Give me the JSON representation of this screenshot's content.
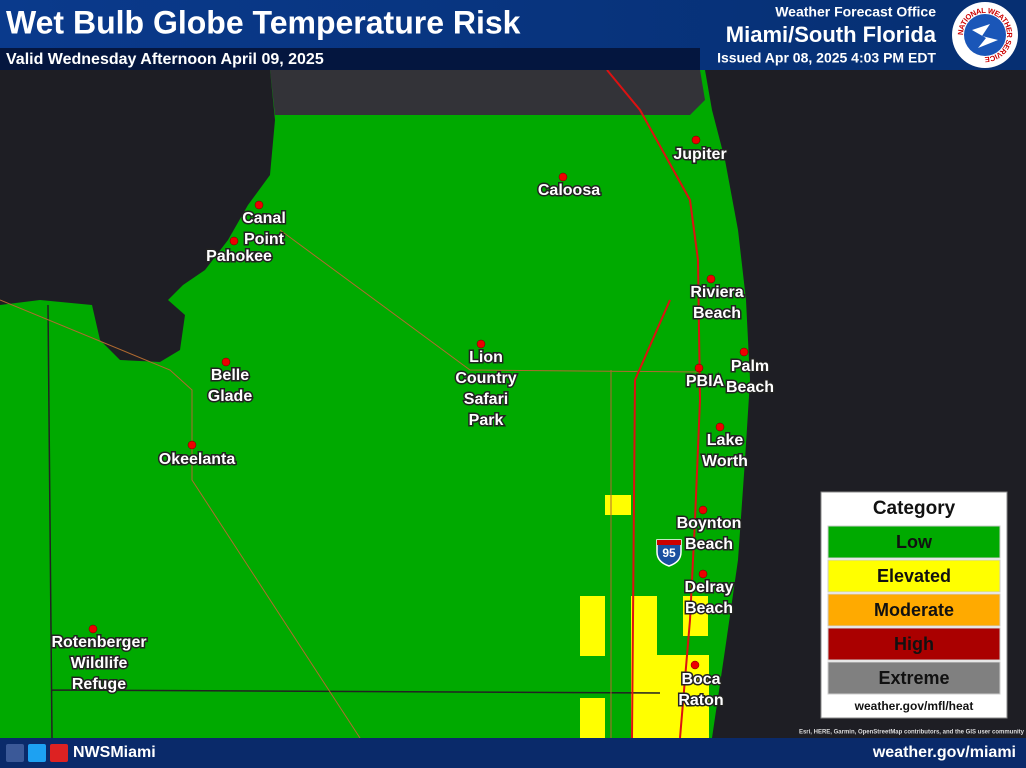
{
  "header": {
    "title": "Wet Bulb Globe Temperature Risk",
    "valid": "Valid Wednesday Afternoon April 09, 2025",
    "office_label": "Weather Forecast Office",
    "office": "Miami/South Florida",
    "issued": "Issued Apr 08, 2025 4:03 PM EDT",
    "logo_text": "NATIONAL WEATHER SERVICE"
  },
  "places": [
    {
      "lines": [
        "Jupiter"
      ]
    },
    {
      "lines": [
        "Caloosa"
      ]
    },
    {
      "lines": [
        "Canal",
        "Point"
      ]
    },
    {
      "lines": [
        "Pahokee"
      ]
    },
    {
      "lines": [
        "Riviera",
        "Beach"
      ]
    },
    {
      "lines": [
        "Lion",
        "Country",
        "Safari",
        "Park"
      ]
    },
    {
      "lines": [
        "Palm",
        "Beach"
      ]
    },
    {
      "lines": [
        "PBIA"
      ]
    },
    {
      "lines": [
        "Belle",
        "Glade"
      ]
    },
    {
      "lines": [
        "Lake",
        "Worth"
      ]
    },
    {
      "lines": [
        "Okeelanta"
      ]
    },
    {
      "lines": [
        "Boynton",
        "Beach"
      ]
    },
    {
      "lines": [
        "Delray",
        "Beach"
      ]
    },
    {
      "lines": [
        "Rotenberger",
        "Wildlife",
        "Refuge"
      ]
    },
    {
      "lines": [
        "Boca",
        "Raton"
      ]
    }
  ],
  "shield": "95",
  "legend": {
    "title": "Category",
    "items": [
      {
        "label": "Low",
        "color": "#00aa00"
      },
      {
        "label": "Elevated",
        "color": "#ffff00"
      },
      {
        "label": "Moderate",
        "color": "#ffaa00"
      },
      {
        "label": "High",
        "color": "#aa0000"
      },
      {
        "label": "Extreme",
        "color": "#808080"
      }
    ],
    "url": "weather.gov/mfl/heat"
  },
  "attribution": "Esri, HERE, Garmin, OpenStreetMap contributors, and the GIS user community",
  "footer": {
    "social": "NWSMiami",
    "url": "weather.gov/miami"
  }
}
